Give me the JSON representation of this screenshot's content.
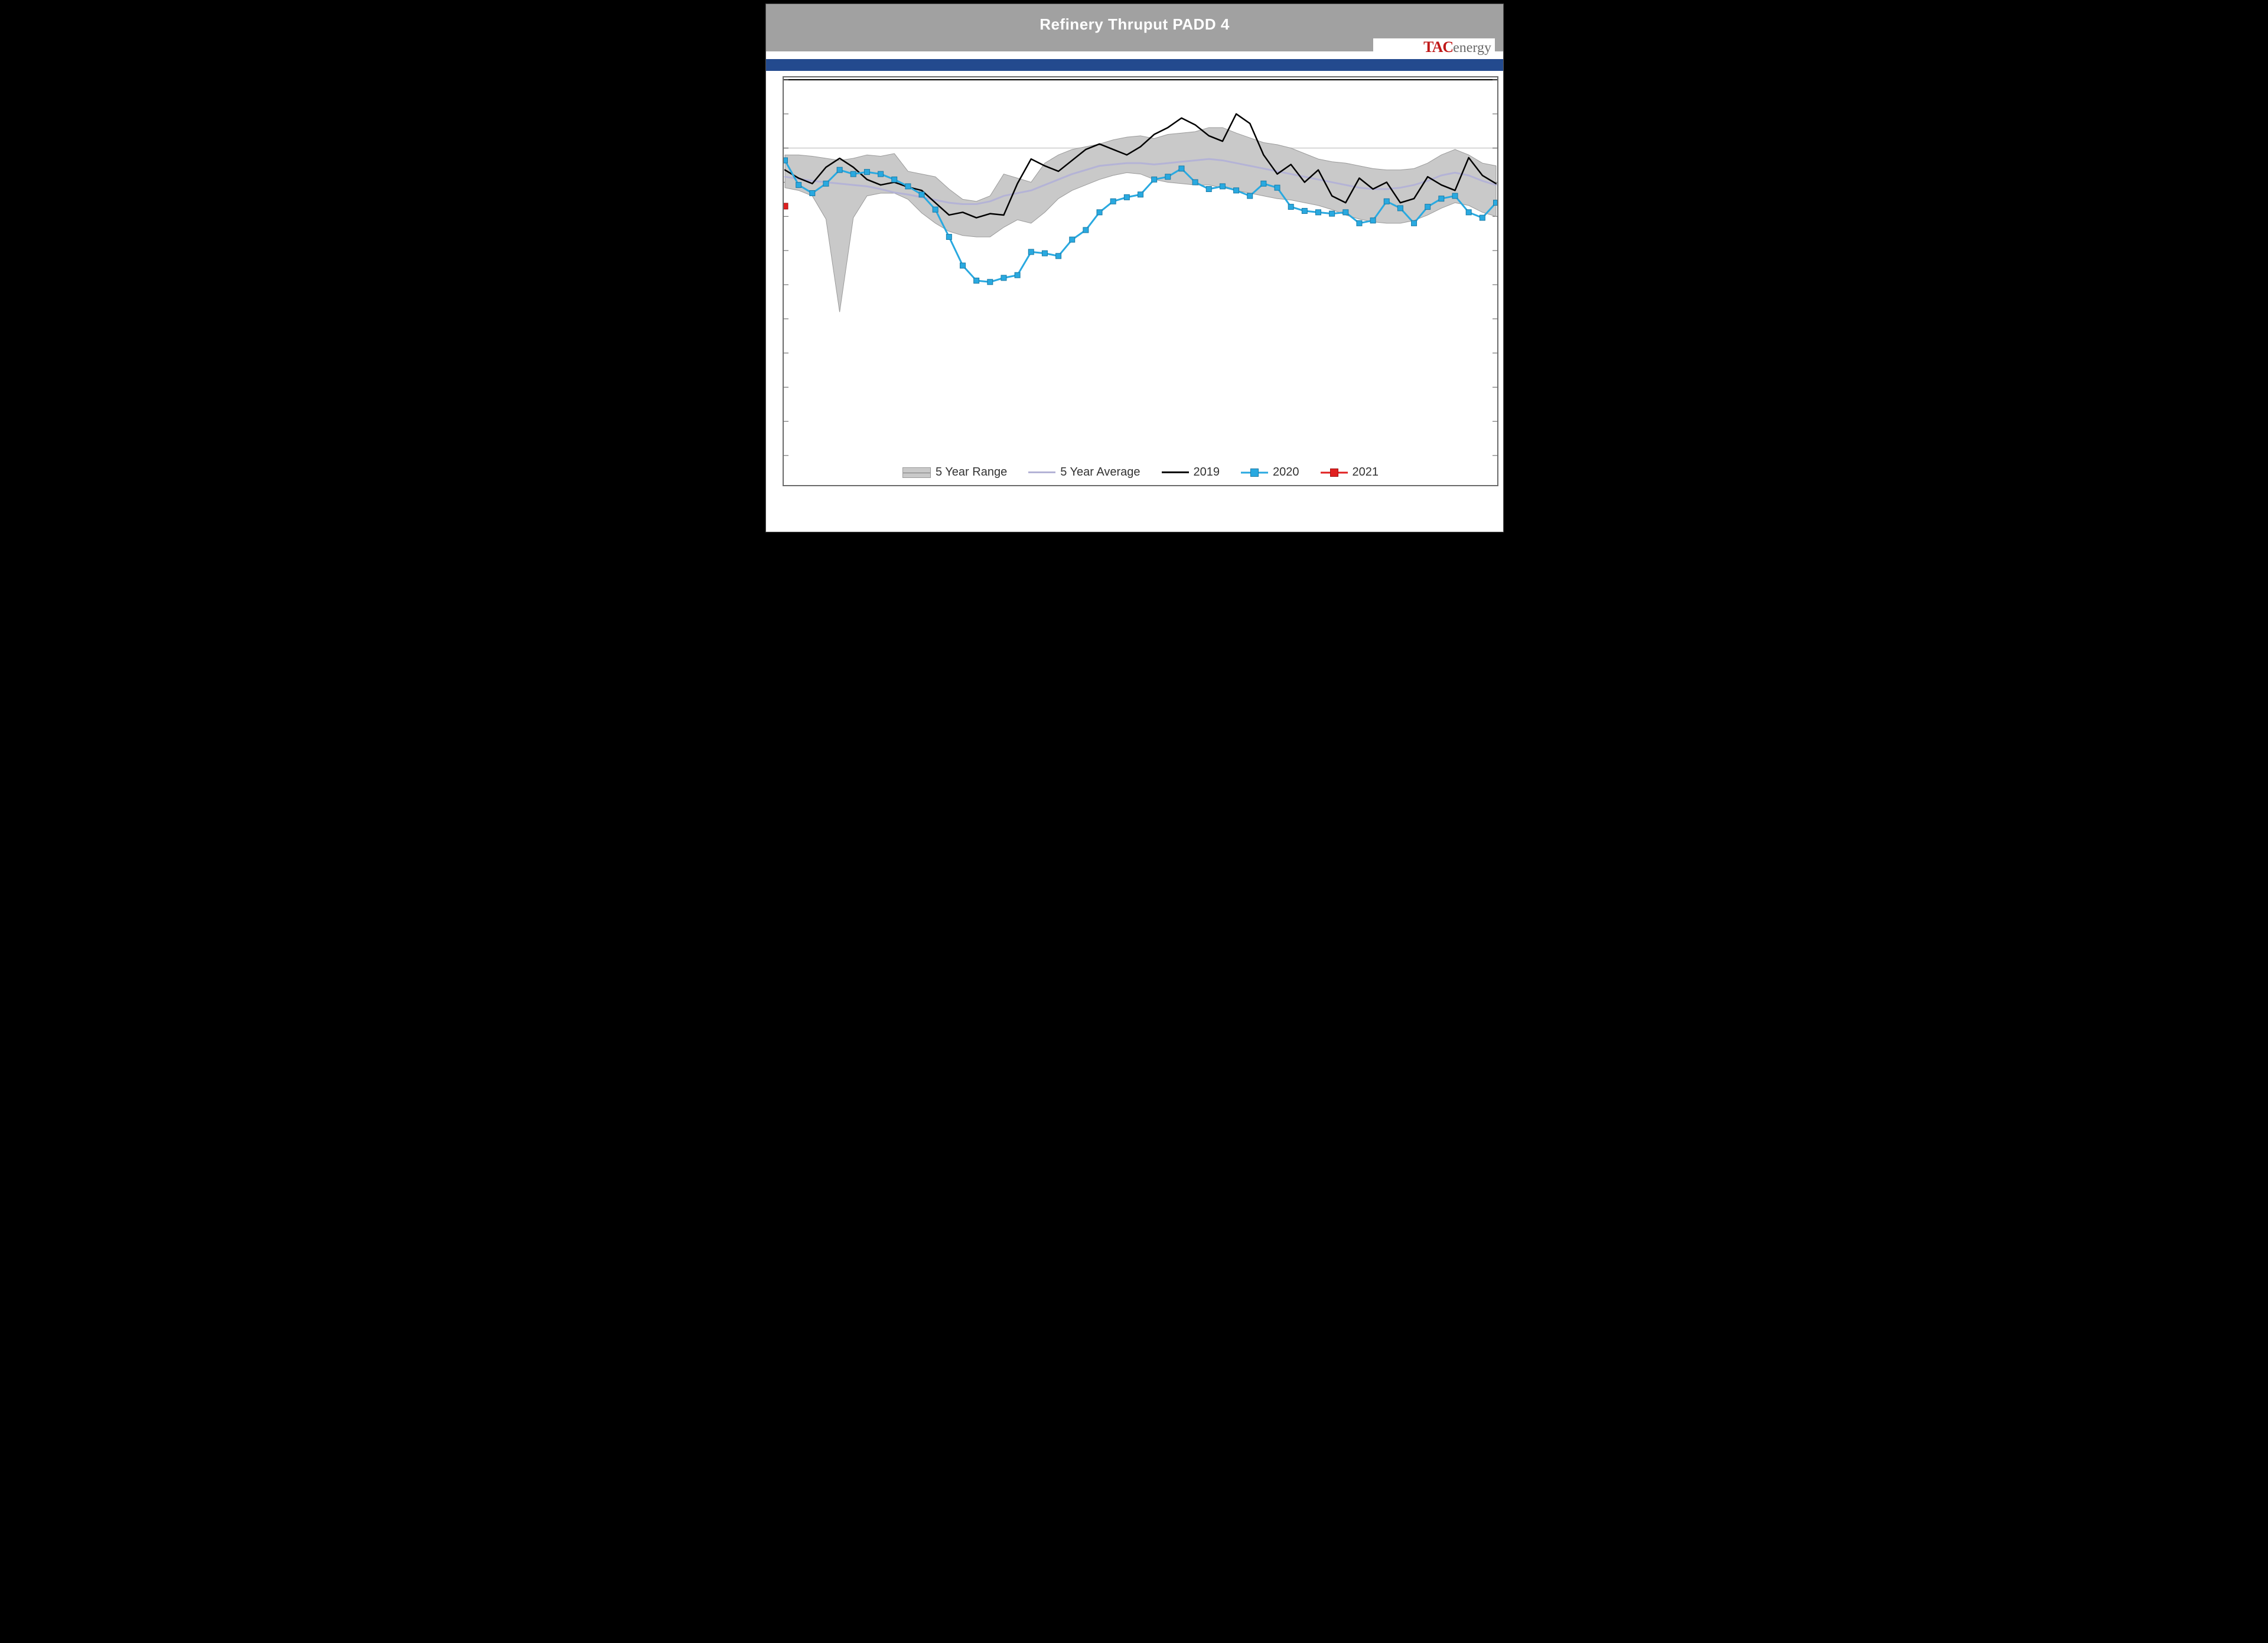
{
  "title": "Refinery Thruput PADD 4",
  "logo": {
    "part1": "TAC",
    "part2": "energy"
  },
  "chart": {
    "type": "line+band",
    "x": {
      "min": 1,
      "max": 53,
      "ticks_visible": false
    },
    "y": {
      "min": 200,
      "max": 750,
      "ticks_visible": false,
      "tick_step": 50,
      "gridlines": [
        {
          "y": 750,
          "color": "#000000",
          "width": 2
        },
        {
          "y": 650,
          "color": "#d6d6d6",
          "width": 2
        }
      ]
    },
    "band": {
      "name": "5 Year Range",
      "fill_color": "#c9c9c9",
      "border_color": "#9a9a9a",
      "upper": [
        640,
        640,
        638,
        635,
        632,
        635,
        640,
        638,
        642,
        616,
        612,
        608,
        590,
        575,
        572,
        580,
        612,
        606,
        600,
        628,
        640,
        648,
        652,
        656,
        662,
        666,
        668,
        664,
        670,
        672,
        674,
        680,
        680,
        672,
        665,
        658,
        655,
        650,
        642,
        634,
        630,
        628,
        624,
        620,
        618,
        618,
        620,
        628,
        640,
        648,
        640,
        628,
        624
      ],
      "lower": [
        592,
        588,
        580,
        546,
        410,
        548,
        580,
        584,
        584,
        575,
        555,
        540,
        528,
        522,
        520,
        520,
        534,
        545,
        540,
        556,
        576,
        588,
        596,
        604,
        610,
        614,
        612,
        604,
        600,
        598,
        596,
        596,
        592,
        588,
        584,
        580,
        576,
        574,
        570,
        566,
        560,
        552,
        546,
        542,
        540,
        540,
        544,
        552,
        562,
        570,
        566,
        556,
        550
      ]
    },
    "series": [
      {
        "name": "5 Year Average",
        "color": "#b4b3d6",
        "width": 3,
        "dash": null,
        "marker": null,
        "values": [
          608,
          605,
          602,
          600,
          598,
          596,
          594,
          590,
          585,
          582,
          578,
          574,
          570,
          568,
          568,
          572,
          580,
          584,
          588,
          596,
          604,
          612,
          618,
          624,
          626,
          628,
          628,
          626,
          628,
          630,
          632,
          634,
          632,
          628,
          624,
          620,
          616,
          612,
          608,
          604,
          600,
          596,
          592,
          590,
          590,
          592,
          596,
          602,
          610,
          614,
          610,
          602,
          596
        ]
      },
      {
        "name": "2019",
        "color": "#000000",
        "width": 2.5,
        "dash": null,
        "marker": null,
        "values": [
          618,
          606,
          598,
          622,
          635,
          622,
          604,
          596,
          600,
          593,
          588,
          570,
          552,
          556,
          548,
          554,
          552,
          598,
          634,
          624,
          616,
          632,
          648,
          656,
          648,
          640,
          652,
          670,
          680,
          694,
          684,
          668,
          660,
          700,
          686,
          640,
          612,
          626,
          600,
          618,
          580,
          570,
          606,
          590,
          600,
          570,
          576,
          608,
          596,
          588,
          636,
          610,
          598
        ]
      },
      {
        "name": "2020",
        "color": "#29a9e0",
        "width": 3,
        "dash": null,
        "marker": {
          "shape": "square",
          "size": 9,
          "fill": "#29a9e0",
          "border": "#1a7ba6"
        },
        "values": [
          632,
          596,
          584,
          598,
          618,
          612,
          615,
          612,
          604,
          594,
          582,
          560,
          520,
          478,
          456,
          454,
          460,
          464,
          498,
          496,
          492,
          516,
          530,
          556,
          572,
          578,
          582,
          604,
          608,
          620,
          600,
          590,
          594,
          588,
          580,
          598,
          592,
          564,
          558,
          556,
          554,
          556,
          540,
          544,
          572,
          562,
          540,
          564,
          576,
          580,
          556,
          548,
          570
        ]
      },
      {
        "name": "2021",
        "color": "#e02020",
        "width": 3,
        "dash": null,
        "marker": {
          "shape": "square",
          "size": 10,
          "fill": "#e02020",
          "border": "#a01010"
        },
        "values": [
          565
        ]
      }
    ],
    "background_color": "#ffffff",
    "panel_border_color": "#6a6a6a"
  },
  "legend": {
    "items": [
      {
        "label": "5 Year Range",
        "kind": "band"
      },
      {
        "label": "5 Year Average",
        "kind": "line",
        "idx": 0
      },
      {
        "label": "2019",
        "kind": "line",
        "idx": 1
      },
      {
        "label": "2020",
        "kind": "marker",
        "idx": 2
      },
      {
        "label": "2021",
        "kind": "marker",
        "idx": 3
      }
    ],
    "fontsize": 20,
    "text_color": "#333333"
  },
  "titlebar": {
    "gray_color": "#a1a1a1",
    "blue_color": "#234a8e",
    "title_color": "#ffffff",
    "title_fontsize": 26
  }
}
